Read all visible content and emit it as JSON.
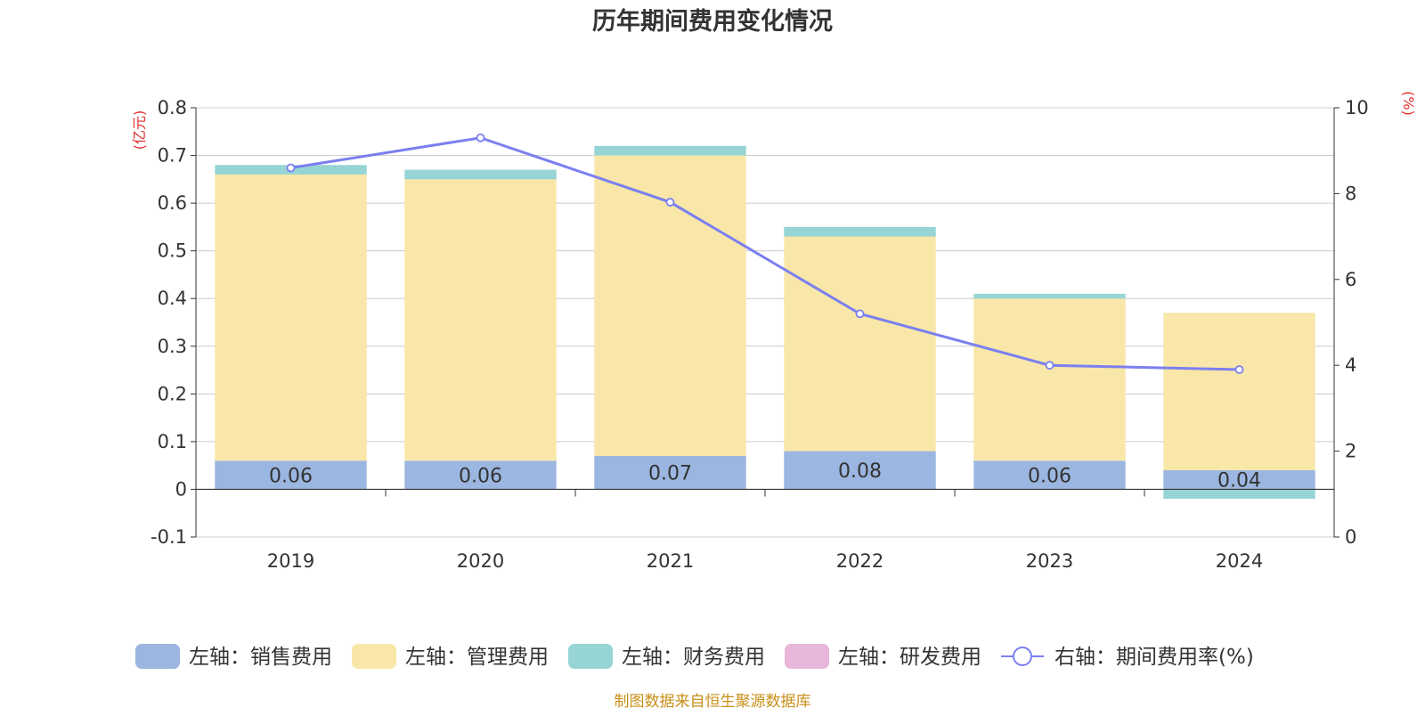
{
  "chart_data": {
    "type": "bar",
    "title": "历年期间费用变化情况",
    "categories": [
      "2019",
      "2020",
      "2021",
      "2022",
      "2023",
      "2024"
    ],
    "stacked": true,
    "left_axis": {
      "unit_label": "(亿元)",
      "ylim": [
        -0.1,
        0.8
      ],
      "ticks": [
        -0.1,
        0,
        0.1,
        0.2,
        0.3,
        0.4,
        0.5,
        0.6,
        0.7,
        0.8
      ],
      "tick_labels": [
        "-0.1",
        "0",
        "0.1",
        "0.2",
        "0.3",
        "0.4",
        "0.5",
        "0.6",
        "0.7",
        "0.8"
      ]
    },
    "right_axis": {
      "unit_label": "(%)",
      "ylim": [
        0,
        10
      ],
      "ticks": [
        0,
        2,
        4,
        6,
        8,
        10
      ],
      "tick_labels": [
        "0",
        "2",
        "4",
        "6",
        "8",
        "10"
      ]
    },
    "series": [
      {
        "name": "左轴：销售费用",
        "axis": "left",
        "kind": "bar",
        "color": "#9bb6e0",
        "values": [
          0.06,
          0.06,
          0.07,
          0.08,
          0.06,
          0.04
        ],
        "data_labels": [
          "0.06",
          "0.06",
          "0.07",
          "0.08",
          "0.06",
          "0.04"
        ]
      },
      {
        "name": "左轴：管理费用",
        "axis": "left",
        "kind": "bar",
        "color": "#f8e7a8",
        "values": [
          0.6,
          0.59,
          0.63,
          0.45,
          0.34,
          0.33
        ]
      },
      {
        "name": "左轴：财务费用",
        "axis": "left",
        "kind": "bar",
        "color": "#97d4d4",
        "values": [
          0.02,
          0.02,
          0.02,
          0.02,
          0.01,
          -0.02
        ]
      },
      {
        "name": "左轴：研发费用",
        "axis": "left",
        "kind": "bar",
        "color": "#e8b6d8",
        "values": [
          0,
          0,
          0,
          0,
          0,
          0
        ]
      },
      {
        "name": "右轴：期间费用率(%)",
        "axis": "right",
        "kind": "line",
        "color": "#7b7ff0",
        "values": [
          8.6,
          9.3,
          7.8,
          5.2,
          4.0,
          3.9
        ]
      }
    ],
    "grid": true,
    "legend_position": "bottom",
    "source_note": "制图数据来自恒生聚源数据库",
    "colors": {
      "axis_label": "#e03030",
      "source_note": "#c89018",
      "text": "#333333",
      "grid": "#cccccc"
    }
  }
}
